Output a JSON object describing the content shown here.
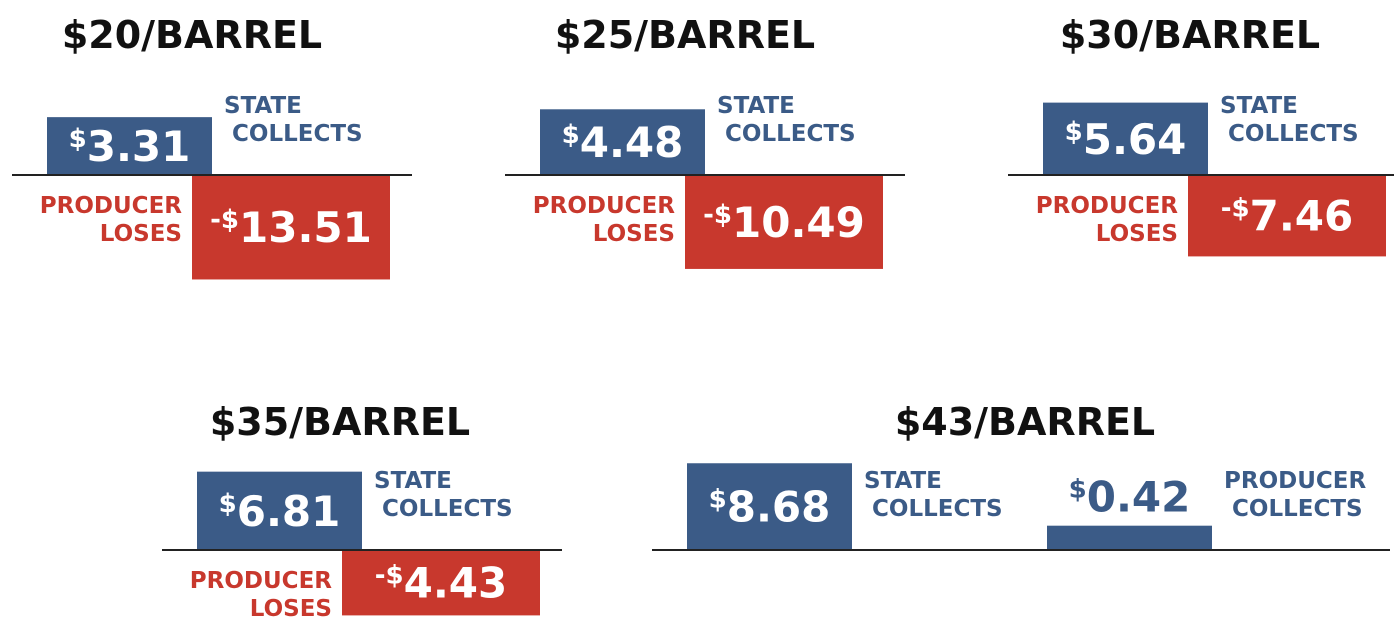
{
  "chart_data": [
    {
      "type": "bar",
      "title": "$20/BARREL",
      "series": [
        {
          "name": "STATE COLLECTS",
          "color": "#3b5b87",
          "values": [
            3.31
          ],
          "value_labels": [
            "$3.31"
          ]
        },
        {
          "name": "PRODUCER LOSES",
          "color": "#c8382d",
          "values": [
            -13.51
          ],
          "value_labels": [
            "-$13.51"
          ]
        }
      ]
    },
    {
      "type": "bar",
      "title": "$25/BARREL",
      "series": [
        {
          "name": "STATE COLLECTS",
          "color": "#3b5b87",
          "values": [
            4.48
          ],
          "value_labels": [
            "$4.48"
          ]
        },
        {
          "name": "PRODUCER LOSES",
          "color": "#c8382d",
          "values": [
            -10.49
          ],
          "value_labels": [
            "-$10.49"
          ]
        }
      ]
    },
    {
      "type": "bar",
      "title": "$30/BARREL",
      "series": [
        {
          "name": "STATE COLLECTS",
          "color": "#3b5b87",
          "values": [
            5.64
          ],
          "value_labels": [
            "$5.64"
          ]
        },
        {
          "name": "PRODUCER LOSES",
          "color": "#c8382d",
          "values": [
            -7.46
          ],
          "value_labels": [
            "-$7.46"
          ]
        }
      ]
    },
    {
      "type": "bar",
      "title": "$35/BARREL",
      "series": [
        {
          "name": "STATE COLLECTS",
          "color": "#3b5b87",
          "values": [
            6.81
          ],
          "value_labels": [
            "$6.81"
          ]
        },
        {
          "name": "PRODUCER LOSES",
          "color": "#c8382d",
          "values": [
            -4.43
          ],
          "value_labels": [
            "-$4.43"
          ]
        }
      ]
    },
    {
      "type": "bar",
      "title": "$43/BARREL",
      "series": [
        {
          "name": "STATE COLLECTS",
          "color": "#3b5b87",
          "values": [
            8.68
          ],
          "value_labels": [
            "$8.68"
          ]
        },
        {
          "name": "PRODUCER COLLECTS",
          "color": "#3b5b87",
          "values": [
            0.42
          ],
          "value_labels": [
            "$0.42"
          ]
        }
      ]
    }
  ]
}
